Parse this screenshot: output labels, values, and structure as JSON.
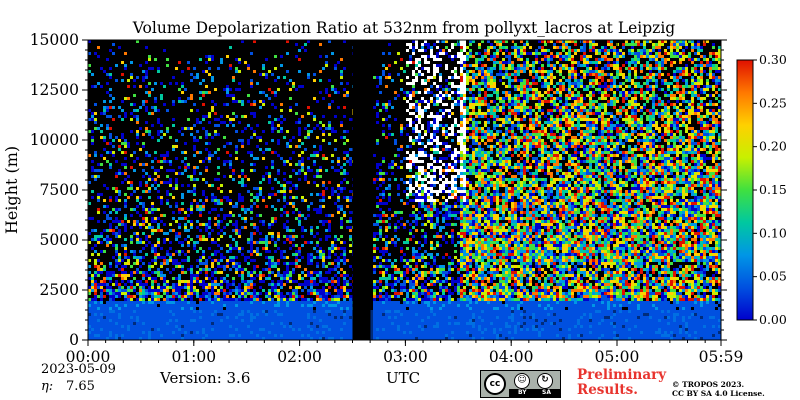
{
  "chart_data": {
    "type": "heatmap",
    "title": "Volume Depolarization Ratio at 532nm from pollyxt_lacros at Leipzig",
    "ylabel": "Height (m)",
    "xlabel": "UTC",
    "x_ticks": [
      "00:00",
      "01:00",
      "02:00",
      "03:00",
      "04:00",
      "05:00",
      "05:59"
    ],
    "x_range_hours": [
      0,
      5.983
    ],
    "y_ticks": [
      0,
      2500,
      5000,
      7500,
      10000,
      12500,
      15000
    ],
    "ylim": [
      0,
      15000
    ],
    "colorbar": {
      "range": [
        0,
        0.3
      ],
      "ticks": [
        "0.00",
        "0.05",
        "0.10",
        "0.15",
        "0.20",
        "0.25",
        "0.30"
      ],
      "colors": [
        "#0000cc",
        "#0050e0",
        "#0096e6",
        "#00c8a0",
        "#40e040",
        "#c8f000",
        "#ffd000",
        "#ff7800",
        "#e01000"
      ]
    },
    "no_signal_gaps_hours": [
      [
        2.5,
        2.67
      ]
    ],
    "noise_gaps_hours": [
      [
        3.0,
        3.55
      ]
    ],
    "grid": false
  },
  "footer": {
    "date": "2023-05-09",
    "eta_label": "η:",
    "eta_value": "7.65",
    "version": "Version: 3.6",
    "preliminary": [
      "Preliminary",
      "Results."
    ],
    "copyright": [
      "© TROPOS 2023.",
      "CC BY SA 4.0 License."
    ],
    "cc_badge": {
      "cc": "cc",
      "by": "BY",
      "sa": "SA"
    }
  }
}
